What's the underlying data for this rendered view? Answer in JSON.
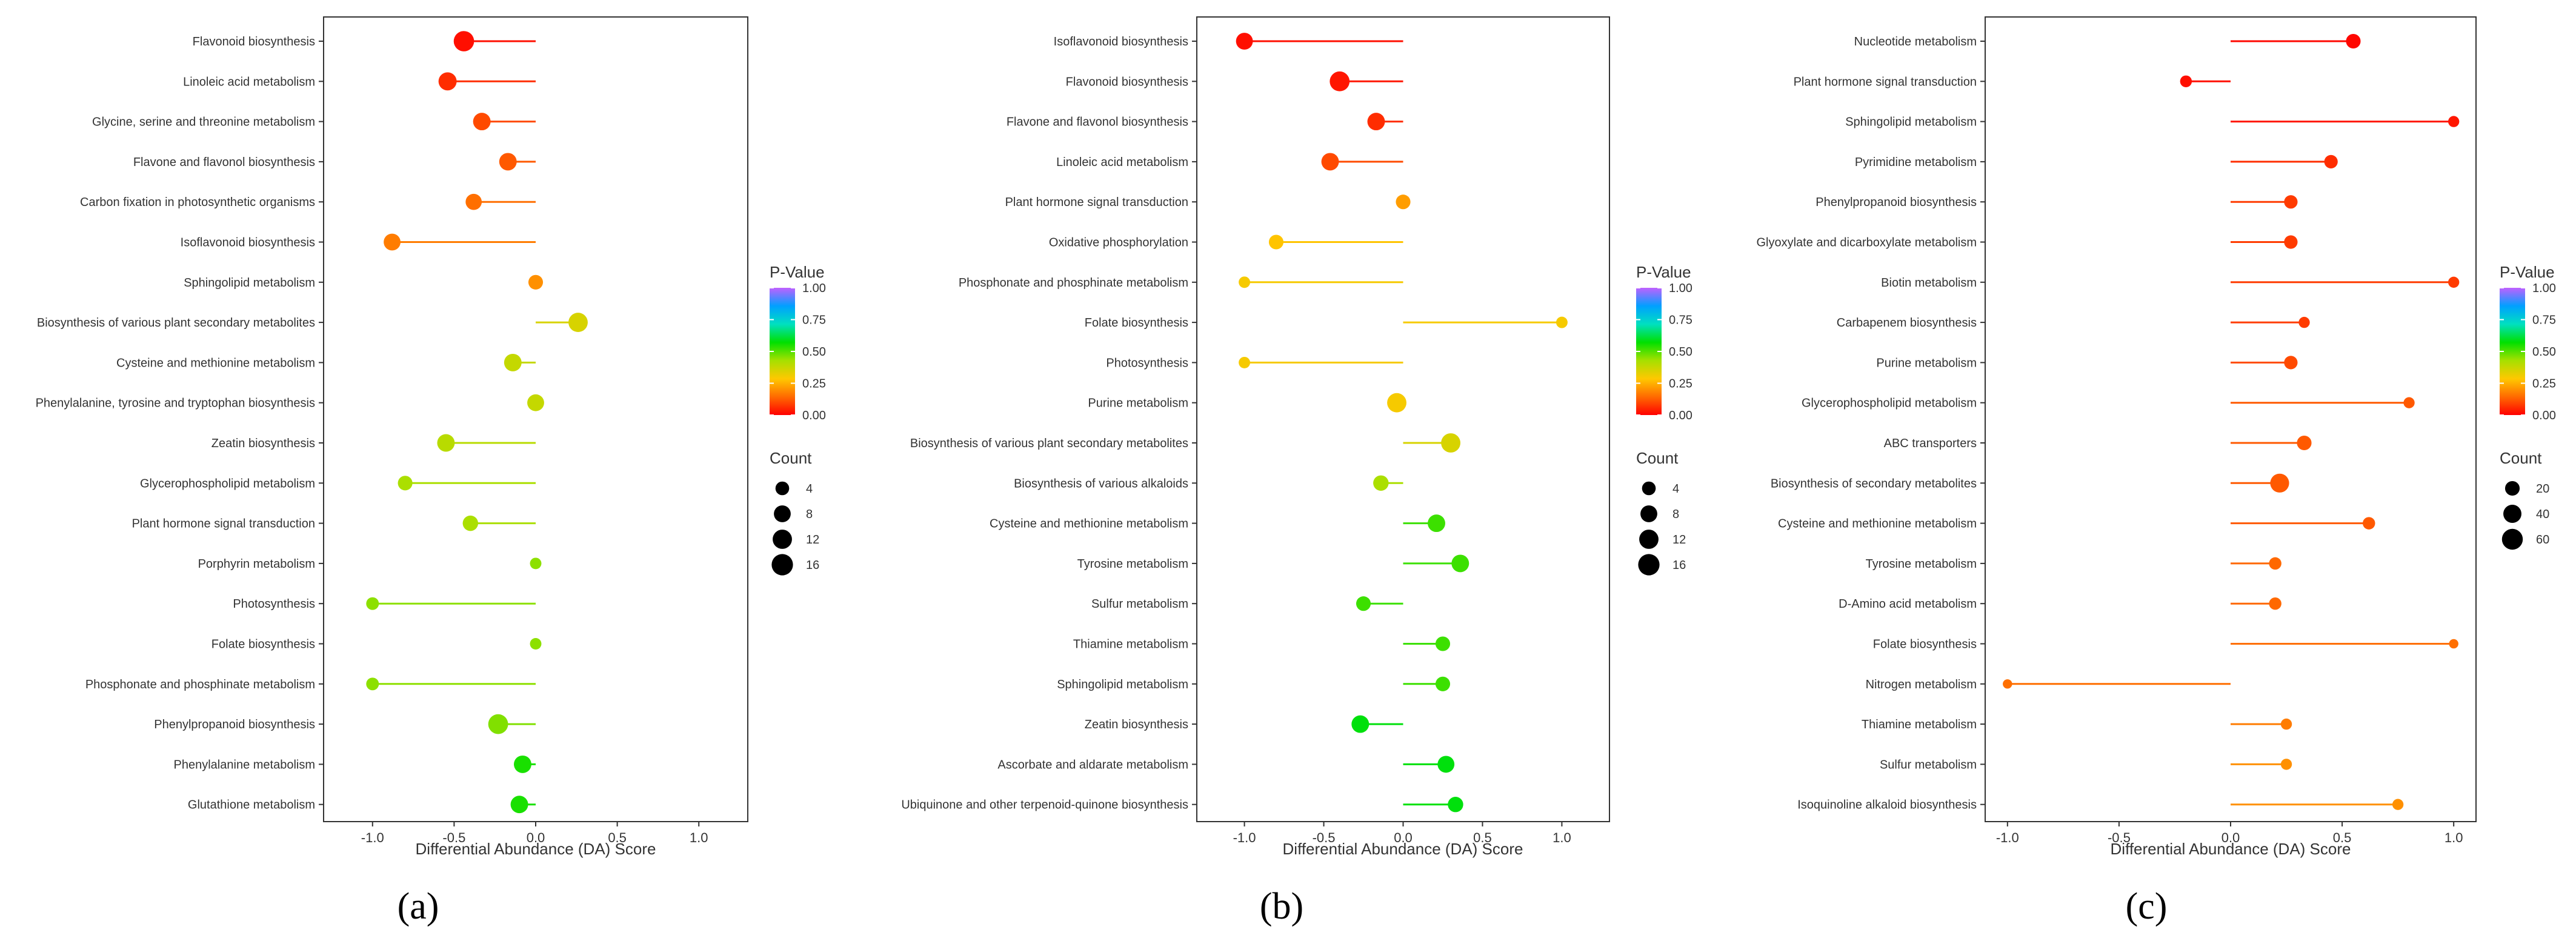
{
  "figure": {
    "panels": [
      "(a)",
      "(b)",
      "(c)"
    ],
    "pvalue_gradient": [
      "#ff0000",
      "#ff6a00",
      "#ffc800",
      "#a6e000",
      "#00e000",
      "#00e0c0",
      "#00a0ff",
      "#c060ff"
    ]
  },
  "chart_data": [
    {
      "type": "lollipop",
      "panel": "(a)",
      "xlabel": "Differential Abundance (DA) Score",
      "ylabel": "",
      "xlim": [
        -1.3,
        1.3
      ],
      "x_ticks": [
        -1.0,
        -0.5,
        0.0,
        0.5,
        1.0
      ],
      "x_tick_labels": [
        "-1.0",
        "-0.5",
        "0.0",
        "0.5",
        "1.0"
      ],
      "legend": {
        "color_title": "P-Value",
        "color_ticks": [
          1.0,
          0.75,
          0.5,
          0.25,
          0.0
        ],
        "color_tick_labels": [
          "1.00",
          "0.75",
          "0.50",
          "0.25",
          "0.00"
        ],
        "size_title": "Count",
        "size_values": [
          4,
          8,
          12,
          16
        ],
        "size_labels": [
          "4",
          "8",
          "12",
          "16"
        ],
        "count_max": 17
      },
      "categories": [
        "Flavonoid biosynthesis",
        "Linoleic acid metabolism",
        "Glycine, serine and threonine metabolism",
        "Flavone and flavonol biosynthesis",
        "Carbon fixation in photosynthetic organisms",
        "Isoflavonoid biosynthesis",
        "Sphingolipid metabolism",
        "Biosynthesis of various plant secondary metabolites",
        "Cysteine and methionine metabolism",
        "Phenylalanine, tyrosine and tryptophan biosynthesis",
        "Zeatin biosynthesis",
        "Glycerophospholipid metabolism",
        "Plant hormone signal transduction",
        "Porphyrin metabolism",
        "Photosynthesis",
        "Folate biosynthesis",
        "Phosphonate and phosphinate metabolism",
        "Phenylpropanoid biosynthesis",
        "Phenylalanine metabolism",
        "Glutathione metabolism"
      ],
      "da_score": [
        -0.44,
        -0.54,
        -0.33,
        -0.17,
        -0.38,
        -0.88,
        0.0,
        0.26,
        -0.14,
        0.0,
        -0.55,
        -0.8,
        -0.4,
        0.0,
        -1.0,
        0.0,
        -1.0,
        -0.23,
        -0.08,
        -0.1
      ],
      "count": [
        14,
        10,
        9,
        9,
        7,
        8,
        5,
        12,
        9,
        8,
        9,
        5,
        6,
        2,
        3,
        2,
        3,
        13,
        9,
        9
      ],
      "p_value": [
        0.02,
        0.06,
        0.1,
        0.12,
        0.15,
        0.17,
        0.2,
        0.35,
        0.38,
        0.38,
        0.4,
        0.42,
        0.42,
        0.45,
        0.45,
        0.45,
        0.45,
        0.46,
        0.55,
        0.55
      ]
    },
    {
      "type": "lollipop",
      "panel": "(b)",
      "xlabel": "Differential Abundance (DA) Score",
      "ylabel": "",
      "xlim": [
        -1.3,
        1.3
      ],
      "x_ticks": [
        -1.0,
        -0.5,
        0.0,
        0.5,
        1.0
      ],
      "x_tick_labels": [
        "-1.0",
        "-0.5",
        "0.0",
        "0.5",
        "1.0"
      ],
      "legend": {
        "color_title": "P-Value",
        "color_ticks": [
          1.0,
          0.75,
          0.5,
          0.25,
          0.0
        ],
        "color_tick_labels": [
          "1.00",
          "0.75",
          "0.50",
          "0.25",
          "0.00"
        ],
        "size_title": "Count",
        "size_values": [
          4,
          8,
          12,
          16
        ],
        "size_labels": [
          "4",
          "8",
          "12",
          "16"
        ],
        "count_max": 17
      },
      "categories": [
        "Isoflavonoid biosynthesis",
        "Flavonoid biosynthesis",
        "Flavone and flavonol biosynthesis",
        "Linoleic acid metabolism",
        "Plant hormone signal transduction",
        "Oxidative phosphorylation",
        "Phosphonate and phosphinate metabolism",
        "Folate biosynthesis",
        "Photosynthesis",
        "Purine metabolism",
        "Biosynthesis of various plant secondary metabolites",
        "Biosynthesis of various alkaloids",
        "Cysteine and methionine metabolism",
        "Tyrosine metabolism",
        "Sulfur metabolism",
        "Thiamine metabolism",
        "Sphingolipid metabolism",
        "Zeatin biosynthesis",
        "Ascorbate and aldarate metabolism",
        "Ubiquinone and other terpenoid-quinone biosynthesis"
      ],
      "da_score": [
        -1.0,
        -0.4,
        -0.17,
        -0.46,
        0.0,
        -0.8,
        -1.0,
        1.0,
        -1.0,
        -0.04,
        0.3,
        -0.14,
        0.21,
        0.36,
        -0.25,
        0.25,
        0.25,
        -0.27,
        0.27,
        0.33
      ],
      "count": [
        8,
        13,
        9,
        9,
        5,
        5,
        2,
        2,
        2,
        12,
        12,
        6,
        9,
        9,
        5,
        5,
        5,
        9,
        8,
        6
      ],
      "p_value": [
        0.02,
        0.03,
        0.06,
        0.1,
        0.22,
        0.28,
        0.3,
        0.3,
        0.3,
        0.3,
        0.35,
        0.42,
        0.52,
        0.52,
        0.52,
        0.52,
        0.52,
        0.58,
        0.58,
        0.58
      ]
    },
    {
      "type": "lollipop",
      "panel": "(c)",
      "xlabel": "Differential Abundance (DA) Score",
      "ylabel": "",
      "xlim": [
        -1.1,
        1.1
      ],
      "x_ticks": [
        -1.0,
        -0.5,
        0.0,
        0.5,
        1.0
      ],
      "x_tick_labels": [
        "-1.0",
        "-0.5",
        "0.0",
        "0.5",
        "1.0"
      ],
      "legend": {
        "color_title": "P-Value",
        "color_ticks": [
          1.0,
          0.75,
          0.5,
          0.25,
          0.0
        ],
        "color_tick_labels": [
          "1.00",
          "0.75",
          "0.50",
          "0.25",
          "0.00"
        ],
        "size_title": "Count",
        "size_values": [
          20,
          40,
          60
        ],
        "size_labels": [
          "20",
          "40",
          "60"
        ],
        "count_max": 68
      },
      "categories": [
        "Nucleotide metabolism",
        "Plant hormone signal transduction",
        "Sphingolipid metabolism",
        "Pyrimidine metabolism",
        "Phenylpropanoid biosynthesis",
        "Glyoxylate and dicarboxylate metabolism",
        "Biotin metabolism",
        "Carbapenem biosynthesis",
        "Purine metabolism",
        "Glycerophospholipid metabolism",
        "ABC transporters",
        "Biosynthesis of secondary metabolites",
        "Cysteine and methionine metabolism",
        "Tyrosine metabolism",
        "D-Amino acid metabolism",
        "Folate biosynthesis",
        "Nitrogen metabolism",
        "Thiamine metabolism",
        "Sulfur metabolism",
        "Isoquinoline alkaloid biosynthesis"
      ],
      "da_score": [
        0.55,
        -0.2,
        1.0,
        0.45,
        0.27,
        0.27,
        1.0,
        0.33,
        0.27,
        0.8,
        0.33,
        0.22,
        0.62,
        0.2,
        0.2,
        1.0,
        -1.0,
        0.25,
        0.25,
        0.75
      ],
      "count": [
        20,
        9,
        7,
        15,
        15,
        15,
        7,
        7,
        15,
        7,
        20,
        45,
        11,
        11,
        11,
        3,
        3,
        7,
        7,
        7
      ],
      "p_value": [
        0.01,
        0.02,
        0.03,
        0.06,
        0.08,
        0.08,
        0.08,
        0.08,
        0.1,
        0.12,
        0.12,
        0.12,
        0.12,
        0.14,
        0.14,
        0.15,
        0.15,
        0.17,
        0.2,
        0.2
      ]
    }
  ]
}
